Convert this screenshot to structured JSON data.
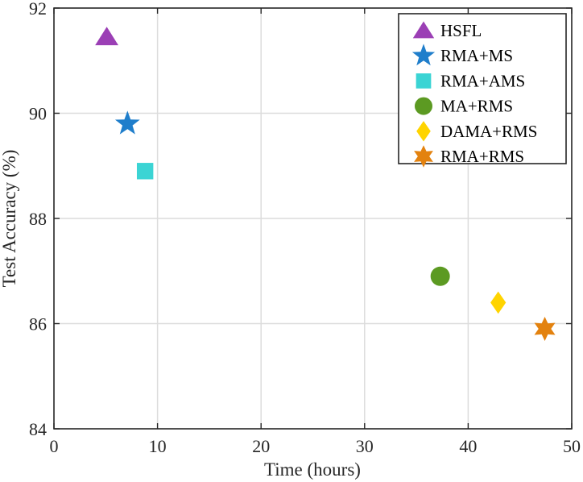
{
  "chart_data": {
    "type": "scatter",
    "title": "",
    "xlabel": "Time (hours)",
    "ylabel": "Test Accuracy (%)",
    "xlim": [
      0,
      50
    ],
    "ylim": [
      84,
      92
    ],
    "xticks": [
      0,
      10,
      20,
      30,
      40,
      50
    ],
    "yticks": [
      84,
      86,
      88,
      90,
      92
    ],
    "grid": true,
    "legend_position": "top-right",
    "series": [
      {
        "name": "HSFL",
        "x": 5.1,
        "y": 91.45,
        "marker": "triangle",
        "color": "#9b3fb5"
      },
      {
        "name": "RMA+MS",
        "x": 7.1,
        "y": 89.8,
        "marker": "star5",
        "color": "#1f7ecb"
      },
      {
        "name": "RMA+AMS",
        "x": 8.8,
        "y": 88.9,
        "marker": "square",
        "color": "#3bd4d4"
      },
      {
        "name": "MA+RMS",
        "x": 37.3,
        "y": 86.9,
        "marker": "circle",
        "color": "#5c9a22"
      },
      {
        "name": "DAMA+RMS",
        "x": 42.9,
        "y": 86.4,
        "marker": "diamond",
        "color": "#ffd400"
      },
      {
        "name": "RMA+RMS",
        "x": 47.4,
        "y": 85.9,
        "marker": "star6",
        "color": "#e3820f"
      }
    ]
  }
}
